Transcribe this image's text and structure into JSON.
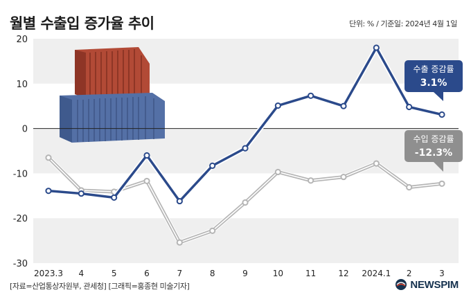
{
  "header": {
    "title": "월별 수출입 증가율 추이",
    "unit": "단위: % / 기준일: 2024년 4월 1일"
  },
  "footer": {
    "source": "[자료=산업통상자원부, 관세청] [그래픽=홍종현 미술기자]",
    "logo_text": "NEWSPIM"
  },
  "callouts": {
    "export_name": "수출 증감률",
    "export_value": "3.1%",
    "import_name": "수입 증감률",
    "import_value": "-12.3%"
  },
  "colors": {
    "export": "#2b4a8b",
    "import": "#b5b5b5",
    "band": "#efefef"
  },
  "chart_data": {
    "type": "line",
    "title": "월별 수출입 증가율 추이",
    "categories": [
      "2023.3",
      "4",
      "5",
      "6",
      "7",
      "8",
      "9",
      "10",
      "11",
      "12",
      "2024.1",
      "2",
      "3"
    ],
    "ylim": [
      -30,
      20
    ],
    "yticks": [
      20,
      10,
      0,
      -10,
      -20,
      -30
    ],
    "grid": "alternating horizontal bands",
    "series": [
      {
        "name": "수출 증감률",
        "values": [
          -13.9,
          -14.5,
          -15.4,
          -6.0,
          -16.2,
          -8.3,
          -4.4,
          5.1,
          7.3,
          5.0,
          18.0,
          4.8,
          3.1
        ]
      },
      {
        "name": "수입 증감률",
        "values": [
          -6.5,
          -13.8,
          -14.1,
          -11.7,
          -25.4,
          -22.8,
          -16.5,
          -9.7,
          -11.6,
          -10.8,
          -7.8,
          -13.1,
          -12.3
        ]
      }
    ]
  }
}
